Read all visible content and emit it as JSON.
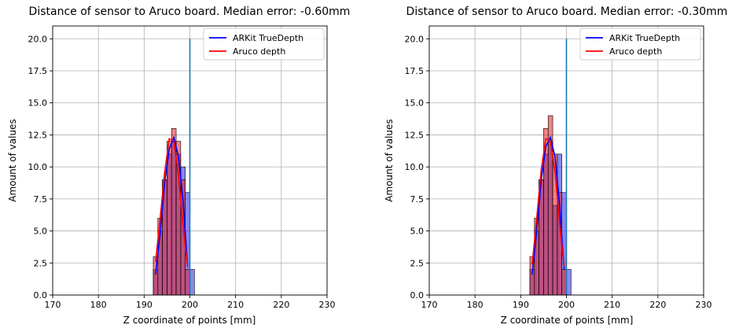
{
  "chart_data": [
    {
      "type": "histogram",
      "title": "Distance of sensor to Aruco board. Median error: -0.60mm",
      "xlabel": "Z coordinate of points [mm]",
      "ylabel": "Amount of values",
      "xlim": [
        170,
        230
      ],
      "ylim": [
        0,
        21
      ],
      "xticks": [
        "170",
        "180",
        "190",
        "200",
        "210",
        "220",
        "230"
      ],
      "yticks": [
        "0.0",
        "2.5",
        "5.0",
        "7.5",
        "10.0",
        "12.5",
        "15.0",
        "17.5",
        "20.0"
      ],
      "grid": true,
      "legend_position": "top-right",
      "reference_line": {
        "x": 200,
        "y_range": [
          0,
          20
        ],
        "color": "#1f77b4"
      },
      "bin_width": 1,
      "series": [
        {
          "name": "ARKit TrueDepth",
          "color": "#0000ff",
          "bins": [
            [
              192,
              2
            ],
            [
              193,
              5
            ],
            [
              194,
              9
            ],
            [
              195,
              11
            ],
            [
              196,
              12
            ],
            [
              197,
              11
            ],
            [
              198,
              10
            ],
            [
              199,
              8
            ],
            [
              200,
              2
            ]
          ],
          "curve": [
            [
              192.5,
              1.6
            ],
            [
              193.5,
              4.8
            ],
            [
              194.5,
              8.8
            ],
            [
              195.5,
              11.4
            ],
            [
              196.5,
              12.3
            ],
            [
              197.5,
              10.8
            ],
            [
              198.5,
              7.4
            ],
            [
              199.5,
              2.2
            ]
          ]
        },
        {
          "name": "Aruco depth",
          "color": "#ff0000",
          "bins": [
            [
              192,
              3
            ],
            [
              193,
              6
            ],
            [
              194,
              9
            ],
            [
              195,
              12
            ],
            [
              196,
              13
            ],
            [
              197,
              12
            ],
            [
              198,
              9
            ],
            [
              199,
              2
            ]
          ],
          "curve": [
            [
              192.5,
              2.6
            ],
            [
              193.5,
              6.0
            ],
            [
              194.5,
              9.6
            ],
            [
              195.5,
              12.2
            ],
            [
              196.5,
              12.0
            ],
            [
              197.5,
              9.4
            ],
            [
              198.5,
              5.4
            ],
            [
              199.5,
              2.2
            ]
          ]
        }
      ]
    },
    {
      "type": "histogram",
      "title": "Distance of sensor to Aruco board. Median error: -0.30mm",
      "xlabel": "Z coordinate of points [mm]",
      "ylabel": "Amount of values",
      "xlim": [
        170,
        230
      ],
      "ylim": [
        0,
        21
      ],
      "xticks": [
        "170",
        "180",
        "190",
        "200",
        "210",
        "220",
        "230"
      ],
      "yticks": [
        "0.0",
        "2.5",
        "5.0",
        "7.5",
        "10.0",
        "12.5",
        "15.0",
        "17.5",
        "20.0"
      ],
      "grid": true,
      "legend_position": "top-right",
      "reference_line": {
        "x": 200,
        "y_range": [
          0,
          20
        ],
        "color": "#1f77b4"
      },
      "bin_width": 1,
      "series": [
        {
          "name": "ARKit TrueDepth",
          "color": "#0000ff",
          "bins": [
            [
              192,
              2
            ],
            [
              193,
              5
            ],
            [
              194,
              9
            ],
            [
              195,
              11
            ],
            [
              196,
              12
            ],
            [
              197,
              7
            ],
            [
              198,
              11
            ],
            [
              199,
              8
            ],
            [
              200,
              2
            ]
          ],
          "curve": [
            [
              192.5,
              1.6
            ],
            [
              193.5,
              5.0
            ],
            [
              194.5,
              9.0
            ],
            [
              195.5,
              11.6
            ],
            [
              196.5,
              12.3
            ],
            [
              197.5,
              10.8
            ],
            [
              198.5,
              7.0
            ],
            [
              199.5,
              2.0
            ]
          ]
        },
        {
          "name": "Aruco depth",
          "color": "#ff0000",
          "bins": [
            [
              192,
              3
            ],
            [
              193,
              6
            ],
            [
              194,
              9
            ],
            [
              195,
              13
            ],
            [
              196,
              14
            ],
            [
              197,
              11
            ],
            [
              198,
              8
            ],
            [
              199,
              2
            ]
          ],
          "curve": [
            [
              192.5,
              2.4
            ],
            [
              193.5,
              6.0
            ],
            [
              194.5,
              9.8
            ],
            [
              195.5,
              12.2
            ],
            [
              196.5,
              12.0
            ],
            [
              197.5,
              9.6
            ],
            [
              198.5,
              5.6
            ],
            [
              199.5,
              2.2
            ]
          ]
        }
      ]
    }
  ]
}
